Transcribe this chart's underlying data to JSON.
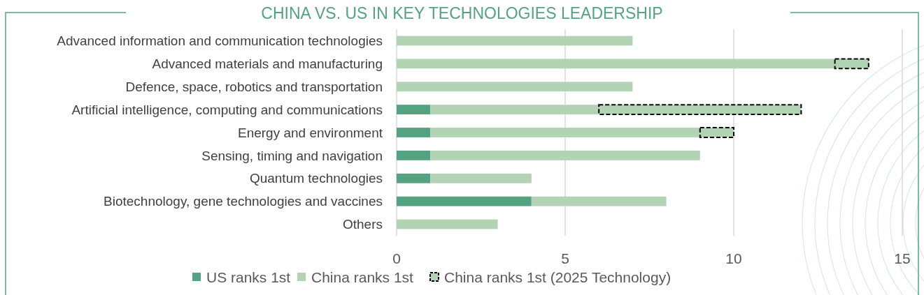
{
  "chart_data": {
    "type": "bar",
    "title": "CHINA VS. US IN KEY TECHNOLOGIES LEADERSHIP",
    "orientation": "horizontal",
    "stacked": true,
    "categories": [
      "Advanced information and communication technologies",
      "Advanced materials and manufacturing",
      "Defence, space, robotics and transportation",
      "Artificial intelligence, computing and communications",
      "Energy and environment",
      "Sensing, timing and navigation",
      "Quantum technologies",
      "Biotechnology, gene technologies and vaccines",
      "Others"
    ],
    "series": [
      {
        "name": "US ranks 1st",
        "color": "#55a283",
        "values": [
          0,
          0,
          0,
          1,
          1,
          1,
          1,
          4,
          0
        ]
      },
      {
        "name": "China ranks 1st",
        "color": "#b3d3b5",
        "values": [
          7,
          13,
          7,
          5,
          8,
          8,
          3,
          4,
          3
        ]
      },
      {
        "name": "China ranks 1st (2025 Technology)",
        "color": "#b3d3b5",
        "line_style": "dashed",
        "values": [
          0,
          1,
          0,
          6,
          1,
          0,
          0,
          0,
          0
        ]
      }
    ],
    "xlim": [
      0,
      15
    ],
    "xticks": [
      0,
      5,
      10,
      15
    ],
    "grid": "x",
    "legend": "bottom"
  }
}
